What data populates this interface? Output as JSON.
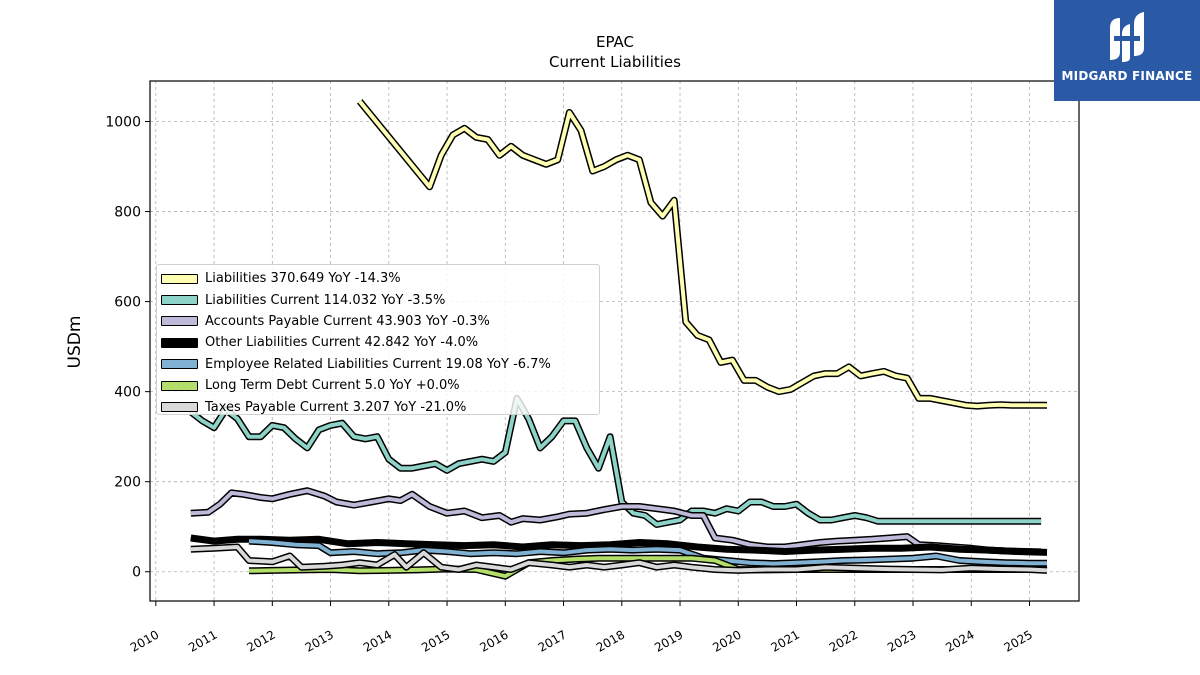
{
  "title": "EPAC",
  "subtitle": "Current  Liabilities",
  "logo": {
    "text": "MIDGARD FINANCE",
    "bg": "#2a5aa6"
  },
  "chart_data": {
    "type": "line",
    "ylabel": "USDm",
    "xlabel": "",
    "xlim": [
      2009.9,
      2025.85
    ],
    "ylim": [
      -65,
      1090
    ],
    "yticks": [
      0,
      200,
      400,
      600,
      800,
      1000
    ],
    "xticks": [
      "2010",
      "2011",
      "2012",
      "2013",
      "2014",
      "2015",
      "2016",
      "2017",
      "2018",
      "2019",
      "2020",
      "2021",
      "2022",
      "2023",
      "2024",
      "2025"
    ],
    "grid": true,
    "legend_position": "center-left",
    "series": [
      {
        "name": "Liabilities  370.649 YoY -14.3%",
        "color": "#ffffb3",
        "x": [
          2013.5,
          2014.7,
          2014.9,
          2015.1,
          2015.3,
          2015.5,
          2015.7,
          2015.9,
          2016.1,
          2016.3,
          2016.5,
          2016.7,
          2016.9,
          2017.1,
          2017.3,
          2017.5,
          2017.7,
          2017.9,
          2018.1,
          2018.3,
          2018.5,
          2018.7,
          2018.9,
          2019.1,
          2019.3,
          2019.5,
          2019.7,
          2019.9,
          2020.1,
          2020.3,
          2020.5,
          2020.7,
          2020.9,
          2021.1,
          2021.3,
          2021.5,
          2021.7,
          2021.9,
          2022.1,
          2022.3,
          2022.5,
          2022.7,
          2022.9,
          2023.1,
          2023.3,
          2023.5,
          2023.7,
          2023.9,
          2024.1,
          2024.3,
          2024.5,
          2024.7,
          2024.9,
          2025.1,
          2025.3
        ],
        "y": [
          1045,
          855,
          925,
          970,
          985,
          965,
          960,
          925,
          945,
          925,
          915,
          905,
          915,
          1020,
          980,
          890,
          900,
          915,
          925,
          915,
          820,
          790,
          825,
          555,
          525,
          515,
          465,
          470,
          425,
          425,
          410,
          400,
          405,
          420,
          435,
          440,
          440,
          455,
          435,
          440,
          445,
          435,
          430,
          385,
          385,
          380,
          375,
          370,
          368,
          370,
          371,
          370,
          370,
          370,
          370
        ]
      },
      {
        "name": "Liabilities Current  114.032 YoY -3.5%",
        "color": "#8dd3c7",
        "x": [
          2010.6,
          2010.8,
          2011.0,
          2011.2,
          2011.4,
          2011.6,
          2011.8,
          2012.0,
          2012.2,
          2012.4,
          2012.6,
          2012.8,
          2013.0,
          2013.2,
          2013.4,
          2013.6,
          2013.8,
          2014.0,
          2014.2,
          2014.4,
          2014.6,
          2014.8,
          2015.0,
          2015.2,
          2015.4,
          2015.6,
          2015.8,
          2016.0,
          2016.2,
          2016.4,
          2016.6,
          2016.8,
          2017.0,
          2017.2,
          2017.4,
          2017.6,
          2017.8,
          2018.0,
          2018.2,
          2018.4,
          2018.6,
          2018.8,
          2019.0,
          2019.2,
          2019.4,
          2019.6,
          2019.8,
          2020.0,
          2020.2,
          2020.4,
          2020.6,
          2020.8,
          2021.0,
          2021.2,
          2021.4,
          2021.6,
          2021.8,
          2022.0,
          2022.2,
          2022.4,
          2022.6,
          2022.8,
          2023.0,
          2023.2,
          2023.4,
          2023.6,
          2023.8,
          2024.0,
          2024.2,
          2024.4,
          2024.6,
          2024.8,
          2025.0,
          2025.2
        ],
        "y": [
          355,
          335,
          320,
          360,
          340,
          300,
          300,
          325,
          320,
          295,
          275,
          315,
          325,
          330,
          300,
          295,
          300,
          250,
          230,
          230,
          235,
          240,
          225,
          240,
          245,
          250,
          245,
          265,
          385,
          340,
          275,
          300,
          335,
          335,
          275,
          230,
          300,
          155,
          130,
          125,
          105,
          110,
          115,
          135,
          135,
          130,
          140,
          135,
          155,
          155,
          145,
          145,
          150,
          130,
          115,
          115,
          120,
          125,
          120,
          112,
          112,
          112,
          112,
          112,
          112,
          112,
          112,
          112,
          112,
          112,
          112,
          112,
          112,
          112
        ]
      },
      {
        "name": "Accounts Payable Current  43.903 YoY -0.3%",
        "color": "#bebada",
        "x": [
          2010.6,
          2010.9,
          2011.1,
          2011.3,
          2011.5,
          2011.8,
          2012.0,
          2012.3,
          2012.6,
          2012.9,
          2013.1,
          2013.4,
          2013.7,
          2014.0,
          2014.2,
          2014.4,
          2014.7,
          2015.0,
          2015.3,
          2015.6,
          2015.9,
          2016.1,
          2016.3,
          2016.6,
          2016.9,
          2017.1,
          2017.4,
          2017.7,
          2018.0,
          2018.3,
          2018.6,
          2018.9,
          2019.2,
          2019.4,
          2019.6,
          2019.9,
          2020.2,
          2020.5,
          2020.8,
          2021.1,
          2021.4,
          2021.7,
          2022.0,
          2022.3,
          2022.6,
          2022.9,
          2023.1,
          2023.4,
          2023.7,
          2024.0,
          2024.3,
          2024.6,
          2024.9,
          2025.2
        ],
        "y": [
          130,
          132,
          150,
          175,
          172,
          165,
          162,
          172,
          180,
          168,
          155,
          148,
          155,
          162,
          158,
          172,
          145,
          130,
          135,
          120,
          125,
          110,
          118,
          115,
          122,
          128,
          130,
          138,
          145,
          145,
          140,
          135,
          125,
          125,
          75,
          70,
          60,
          55,
          55,
          60,
          65,
          68,
          70,
          72,
          75,
          78,
          60,
          58,
          55,
          52,
          48,
          46,
          45,
          44
        ]
      },
      {
        "name": "Other Liabilities Current  42.842 YoY -4.0%",
        "color": "#000000",
        "x": [
          2010.6,
          2011.0,
          2011.4,
          2011.8,
          2012.3,
          2012.8,
          2013.3,
          2013.8,
          2014.3,
          2014.8,
          2015.3,
          2015.8,
          2016.3,
          2016.8,
          2017.3,
          2017.8,
          2018.3,
          2018.8,
          2019.3,
          2019.8,
          2020.3,
          2020.8,
          2021.3,
          2021.8,
          2022.3,
          2022.8,
          2023.3,
          2023.8,
          2024.3,
          2024.8,
          2025.3
        ],
        "y": [
          75,
          68,
          72,
          72,
          70,
          72,
          62,
          65,
          62,
          60,
          58,
          60,
          55,
          60,
          58,
          60,
          65,
          62,
          55,
          50,
          48,
          45,
          48,
          50,
          52,
          52,
          55,
          50,
          48,
          45,
          43
        ]
      },
      {
        "name": "Employee Related Liabilities Current  19.08 YoY -6.7%",
        "color": "#80b1d3",
        "x": [
          2011.6,
          2012.0,
          2012.4,
          2012.8,
          2013.0,
          2013.4,
          2013.8,
          2014.2,
          2014.6,
          2015.0,
          2015.4,
          2015.8,
          2016.2,
          2016.6,
          2017.0,
          2017.4,
          2017.8,
          2018.2,
          2018.6,
          2019.0,
          2019.4,
          2019.8,
          2020.2,
          2020.6,
          2021.0,
          2021.4,
          2021.8,
          2022.2,
          2022.6,
          2023.0,
          2023.4,
          2023.8,
          2024.2,
          2024.6,
          2025.0,
          2025.3
        ],
        "y": [
          68,
          65,
          60,
          58,
          42,
          45,
          40,
          42,
          48,
          45,
          40,
          42,
          40,
          45,
          42,
          48,
          50,
          48,
          50,
          48,
          30,
          25,
          20,
          18,
          20,
          22,
          25,
          26,
          28,
          30,
          35,
          25,
          22,
          20,
          19,
          19
        ]
      },
      {
        "name": "Long Term Debt Current  5.0 YoY +0.0%",
        "color": "#b3de69",
        "x": [
          2011.6,
          2012.0,
          2012.5,
          2013.0,
          2013.5,
          2014.0,
          2014.5,
          2015.0,
          2015.5,
          2016.0,
          2016.4,
          2016.8,
          2017.2,
          2017.6,
          2018.0,
          2018.4,
          2018.8,
          2019.2,
          2019.6,
          2020.0,
          2020.5,
          2021.0,
          2021.5,
          2022.0,
          2022.5,
          2023.0,
          2023.5,
          2024.0,
          2024.5,
          2025.0,
          2025.3
        ],
        "y": [
          2,
          3,
          4,
          5,
          2,
          3,
          4,
          6,
          5,
          -10,
          20,
          25,
          28,
          30,
          30,
          30,
          30,
          30,
          25,
          5,
          4,
          5,
          5,
          5,
          5,
          5,
          5,
          5,
          5,
          5,
          5
        ]
      },
      {
        "name": "Taxes Payable Current  3.207 YoY -21.0%",
        "color": "#d9d9d9",
        "x": [
          2010.6,
          2011.0,
          2011.4,
          2011.6,
          2012.0,
          2012.3,
          2012.5,
          2012.9,
          2013.2,
          2013.5,
          2013.8,
          2014.1,
          2014.3,
          2014.6,
          2014.9,
          2015.2,
          2015.5,
          2015.8,
          2016.1,
          2016.4,
          2016.8,
          2017.1,
          2017.4,
          2017.7,
          2018.0,
          2018.3,
          2018.6,
          2018.9,
          2019.2,
          2019.6,
          2020.0,
          2020.5,
          2021.0,
          2021.5,
          2022.0,
          2022.5,
          2023.0,
          2023.5,
          2024.0,
          2024.5,
          2025.0,
          2025.3
        ],
        "y": [
          50,
          52,
          55,
          25,
          22,
          35,
          10,
          12,
          15,
          20,
          15,
          38,
          10,
          42,
          10,
          5,
          15,
          10,
          5,
          20,
          15,
          10,
          15,
          10,
          15,
          20,
          10,
          15,
          10,
          5,
          3,
          5,
          5,
          10,
          8,
          6,
          5,
          4,
          8,
          6,
          5,
          3
        ]
      }
    ]
  }
}
